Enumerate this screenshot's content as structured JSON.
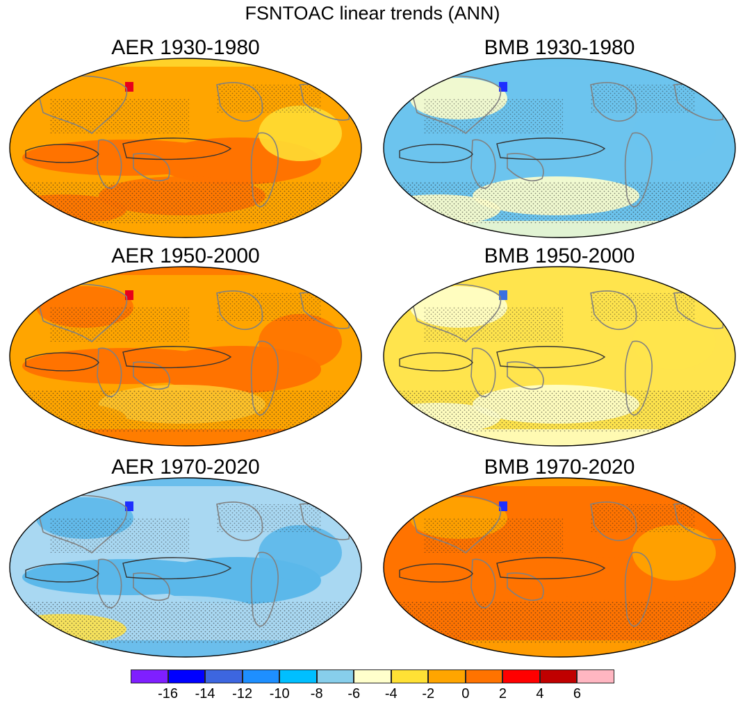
{
  "figure": {
    "title": "FSNTOAC linear trends (ANN)"
  },
  "panels": [
    {
      "id": "aer-1930-1980",
      "title": "AER 1930-1980",
      "base": "#FFA500",
      "tropics": "#FF7300",
      "patches": [
        "#FFA500",
        "#FF7300",
        "#FFDD33",
        "#FF7300"
      ],
      "accent": "#E8001C"
    },
    {
      "id": "bmb-1930-1980",
      "title": "BMB 1930-1980",
      "base": "#6CC4EE",
      "tropics": "#6CC4EE",
      "patches": [
        "#FFFFCC",
        "#FFFFCC",
        "#6CC4EE",
        "#FFFFCC"
      ],
      "accent": "#1E2FFF"
    },
    {
      "id": "aer-1950-2000",
      "title": "AER 1950-2000",
      "base": "#FFA500",
      "tropics": "#FF7300",
      "patches": [
        "#FF7300",
        "#FFC52E",
        "#FF7300",
        "#FFA500"
      ],
      "accent": "#E8001C"
    },
    {
      "id": "bmb-1950-2000",
      "title": "BMB 1950-2000",
      "base": "#FFE44D",
      "tropics": "#FFE44D",
      "patches": [
        "#FFFFCC",
        "#FFFFCC",
        "#FFE44D",
        "#FFFFCC"
      ],
      "accent": "#3B6FE0"
    },
    {
      "id": "aer-1970-2020",
      "title": "AER 1970-2020",
      "base": "#A9D8F2",
      "tropics": "#5BB8EA",
      "patches": [
        "#5BB8EA",
        "#A9D8F2",
        "#5BB8EA",
        "#FFE44D"
      ],
      "accent": "#1E2FFF"
    },
    {
      "id": "bmb-1970-2020",
      "title": "BMB 1970-2020",
      "base": "#FF7300",
      "tropics": "#FF7300",
      "patches": [
        "#FFA500",
        "#FF7300",
        "#FFA500",
        "#FF7300"
      ],
      "accent": "#1E2FFF"
    }
  ],
  "colorbar": {
    "colors": [
      "#7F1FFF",
      "#0000FF",
      "#3D66E0",
      "#1E8FFF",
      "#00BFFF",
      "#87CEEB",
      "#FFFFCC",
      "#FFE135",
      "#FFA500",
      "#FF7300",
      "#FF0000",
      "#C00000",
      "#FFB6C1"
    ],
    "labels": [
      "-16",
      "-14",
      "-12",
      "-10",
      "-8",
      "-6",
      "-4",
      "-2",
      "0",
      "2",
      "4",
      "6"
    ]
  }
}
